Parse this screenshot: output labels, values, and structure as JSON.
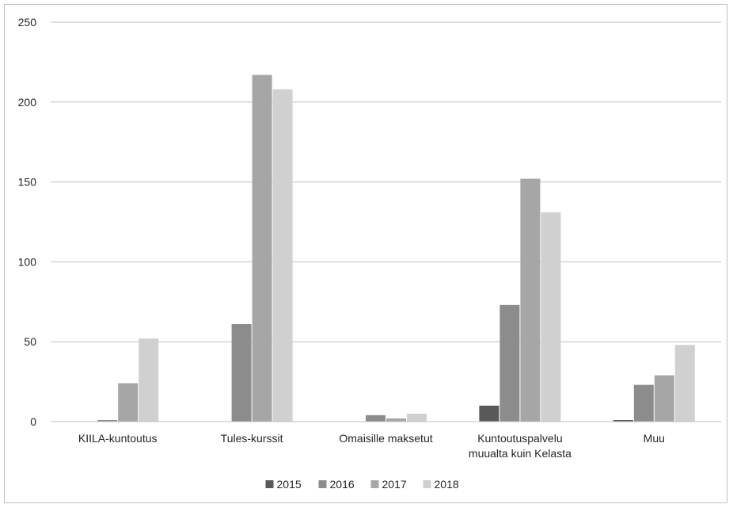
{
  "chart_data": {
    "type": "bar",
    "categories": [
      [
        "KIILA-kuntoutus"
      ],
      [
        "Tules-kurssit"
      ],
      [
        "Omaisille maksetut"
      ],
      [
        "Kuntoutuspalvelu",
        "muualta kuin Kelasta"
      ],
      [
        "Muu"
      ]
    ],
    "series": [
      {
        "name": "2015",
        "color": "#595959",
        "values": [
          0,
          0,
          0,
          10,
          1
        ]
      },
      {
        "name": "2016",
        "color": "#8c8c8c",
        "values": [
          1,
          61,
          4,
          73,
          23
        ]
      },
      {
        "name": "2017",
        "color": "#a6a6a6",
        "values": [
          24,
          217,
          2,
          152,
          29
        ]
      },
      {
        "name": "2018",
        "color": "#d0d0d0",
        "values": [
          52,
          208,
          5,
          131,
          48
        ]
      }
    ],
    "ylim": [
      0,
      250
    ],
    "yticks": [
      0,
      50,
      100,
      150,
      200,
      250
    ],
    "grid": true,
    "legend_position": "bottom"
  }
}
